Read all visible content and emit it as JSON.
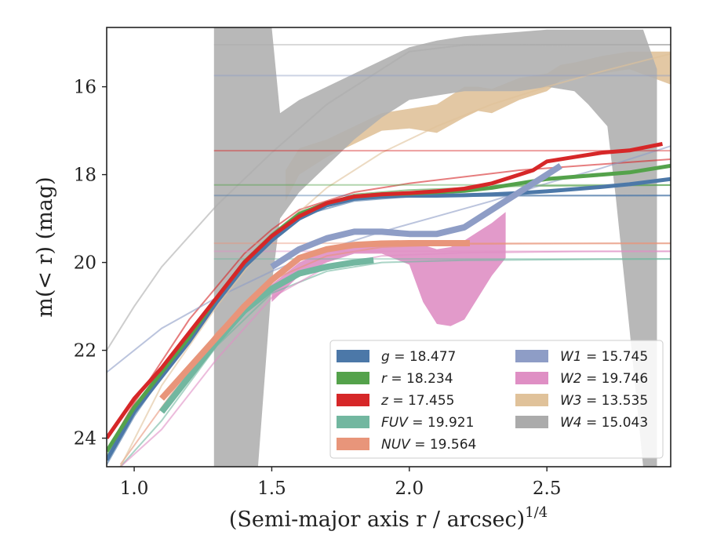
{
  "chart_data": {
    "type": "line",
    "xlabel": "(Semi-major axis r / arcsec)",
    "xlabel_superscript": "1/4",
    "ylabel": "m(< r) (mag)",
    "xlim": [
      0.9,
      2.95
    ],
    "ylim": [
      24.65,
      14.65
    ],
    "y_inverted": true,
    "grid": false,
    "legend_placement": "lower-right",
    "xticks": [
      "1.0",
      "1.5",
      "2.0",
      "2.5"
    ],
    "xtick_values": [
      1.0,
      1.5,
      2.0,
      2.5
    ],
    "yticks": [
      "16",
      "18",
      "20",
      "22",
      "24"
    ],
    "ytick_values": [
      16,
      18,
      20,
      22,
      24
    ],
    "legend_left": [
      {
        "prefix": "g",
        "text": " = 18.477",
        "color": "#4c78a8"
      },
      {
        "prefix": "r",
        "text": " = 18.234",
        "color": "#54a24b"
      },
      {
        "prefix": "z",
        "text": " = 17.455",
        "color": "#d62728"
      },
      {
        "prefix": "FUV",
        "text": " = 19.921",
        "color": "#72b7a0"
      },
      {
        "prefix": "NUV",
        "text": " = 19.564",
        "color": "#e8957a"
      }
    ],
    "legend_right": [
      {
        "prefix": "W1",
        "text": " = 15.745",
        "color": "#8e9dc6"
      },
      {
        "prefix": "W2",
        "text": " = 19.746",
        "color": "#df8fc4"
      },
      {
        "prefix": "W3",
        "text": " = 13.535",
        "color": "#e0c29a"
      },
      {
        "prefix": "W4",
        "text": " = 15.043",
        "color": "#ababab"
      }
    ],
    "series": [
      {
        "name": "g",
        "color": "#4c78a8",
        "asymptote": 18.477,
        "x": [
          0.9,
          1.0,
          1.1,
          1.2,
          1.3,
          1.4,
          1.5,
          1.6,
          1.7,
          1.8,
          1.9,
          2.0,
          2.1,
          2.2,
          2.3,
          2.4,
          2.5,
          2.6,
          2.7,
          2.8,
          2.95
        ],
        "y": [
          24.5,
          23.4,
          22.6,
          21.8,
          20.9,
          20.1,
          19.5,
          19.0,
          18.7,
          18.55,
          18.5,
          18.48,
          18.48,
          18.47,
          18.45,
          18.42,
          18.38,
          18.33,
          18.28,
          18.22,
          18.1
        ]
      },
      {
        "name": "r",
        "color": "#54a24b",
        "asymptote": 18.234,
        "x": [
          0.9,
          1.0,
          1.1,
          1.2,
          1.3,
          1.4,
          1.5,
          1.6,
          1.7,
          1.8,
          1.9,
          2.0,
          2.1,
          2.2,
          2.3,
          2.4,
          2.5,
          2.6,
          2.7,
          2.8,
          2.95
        ],
        "y": [
          24.3,
          23.3,
          22.5,
          21.7,
          20.8,
          20.0,
          19.4,
          18.9,
          18.65,
          18.5,
          18.45,
          18.43,
          18.4,
          18.37,
          18.3,
          18.2,
          18.1,
          18.05,
          18.0,
          17.95,
          17.8
        ]
      },
      {
        "name": "z",
        "color": "#d62728",
        "asymptote": 17.455,
        "x": [
          0.9,
          1.0,
          1.1,
          1.2,
          1.3,
          1.4,
          1.5,
          1.6,
          1.7,
          1.8,
          1.9,
          2.0,
          2.1,
          2.2,
          2.3,
          2.4,
          2.45,
          2.5,
          2.6,
          2.7,
          2.8,
          2.92
        ],
        "y": [
          24.0,
          23.1,
          22.4,
          21.6,
          20.8,
          20.0,
          19.4,
          18.95,
          18.65,
          18.5,
          18.45,
          18.42,
          18.38,
          18.32,
          18.2,
          18.0,
          17.9,
          17.7,
          17.6,
          17.5,
          17.45,
          17.3
        ]
      },
      {
        "name": "FUV",
        "color": "#72b7a0",
        "asymptote": 19.921,
        "x": [
          1.1,
          1.2,
          1.3,
          1.4,
          1.5,
          1.6,
          1.7,
          1.8,
          1.87
        ],
        "y": [
          23.4,
          22.6,
          21.8,
          21.1,
          20.6,
          20.25,
          20.1,
          20.0,
          19.95
        ]
      },
      {
        "name": "NUV",
        "color": "#e8957a",
        "asymptote": 19.564,
        "x": [
          1.1,
          1.2,
          1.3,
          1.4,
          1.5,
          1.6,
          1.7,
          1.8,
          1.9,
          2.0,
          2.1,
          2.22
        ],
        "y": [
          23.1,
          22.4,
          21.7,
          21.0,
          20.4,
          19.9,
          19.7,
          19.6,
          19.57,
          19.56,
          19.56,
          19.56
        ]
      },
      {
        "name": "W1",
        "color": "#8e9dc6",
        "asymptote": 15.745,
        "x": [
          1.5,
          1.6,
          1.7,
          1.8,
          1.9,
          2.0,
          2.1,
          2.2,
          2.3,
          2.4,
          2.5,
          2.55
        ],
        "y": [
          20.1,
          19.7,
          19.45,
          19.3,
          19.3,
          19.35,
          19.35,
          19.2,
          18.8,
          18.4,
          18.0,
          17.8
        ]
      },
      {
        "name": "W2",
        "color": "#df8fc4",
        "asymptote": 19.746,
        "x": [
          1.5,
          1.6,
          1.7,
          1.8,
          1.9,
          2.0,
          2.05,
          2.1,
          2.15,
          2.2,
          2.25,
          2.3,
          2.35
        ],
        "y": [
          20.7,
          20.15,
          19.85,
          19.65,
          19.6,
          19.65,
          19.85,
          20.1,
          20.35,
          20.55,
          20.3,
          19.9,
          19.6
        ]
      },
      {
        "name": "W3",
        "color": "#e0c29a",
        "asymptote": 13.535,
        "x": [
          1.55,
          1.6,
          1.7,
          1.8,
          1.9,
          2.0,
          2.1,
          2.2,
          2.3,
          2.4,
          2.5,
          2.6,
          2.7,
          2.8,
          2.95
        ],
        "y": [
          18.2,
          17.7,
          17.35,
          17.05,
          16.85,
          16.6,
          16.4,
          16.25,
          16.1,
          15.9,
          15.75,
          15.6,
          15.5,
          15.4,
          15.3
        ]
      },
      {
        "name": "W4",
        "color": "#ababab",
        "asymptote": 15.043,
        "x": [
          1.29,
          1.4,
          1.5,
          1.6,
          1.7,
          1.8,
          1.9,
          2.0,
          2.1,
          2.2,
          2.3,
          2.4,
          2.5,
          2.6,
          2.7,
          2.8,
          2.9
        ],
        "y": [
          18.4,
          18.3,
          18.0,
          17.4,
          16.8,
          16.3,
          15.9,
          15.7,
          15.6,
          15.6,
          15.6,
          15.6,
          15.65,
          15.7,
          15.75,
          15.8,
          15.85
        ]
      }
    ],
    "bands": [
      {
        "name": "W3",
        "color": "#e0c29a",
        "x": [
          1.55,
          1.6,
          1.7,
          1.8,
          1.9,
          2.0,
          2.1,
          2.2,
          2.25,
          2.3,
          2.4,
          2.5,
          2.55,
          2.6,
          2.7,
          2.8,
          2.95
        ],
        "y_lo": [
          18.6,
          18.0,
          17.6,
          17.3,
          17.0,
          16.95,
          17.05,
          16.7,
          16.55,
          16.6,
          16.3,
          16.1,
          15.85,
          15.8,
          15.7,
          15.6,
          15.95
        ],
        "y_hi": [
          17.9,
          17.4,
          17.2,
          16.9,
          16.6,
          16.5,
          16.4,
          16.0,
          16.0,
          16.05,
          15.8,
          15.7,
          15.5,
          15.45,
          15.3,
          15.2,
          15.2
        ]
      },
      {
        "name": "W4",
        "color": "#b0b0b0",
        "x": [
          1.29,
          1.3,
          1.38,
          1.45,
          1.5,
          1.53,
          1.6,
          1.7,
          1.8,
          1.9,
          2.0,
          2.1,
          2.2,
          2.3,
          2.4,
          2.5,
          2.6,
          2.65,
          2.72,
          2.75,
          2.8,
          2.85,
          2.9
        ],
        "y_lo": [
          24.65,
          24.65,
          24.65,
          24.65,
          20.5,
          19.0,
          18.4,
          17.8,
          17.2,
          16.7,
          16.3,
          16.2,
          16.1,
          16.1,
          16.1,
          16.0,
          16.1,
          16.4,
          16.9,
          18.5,
          21.5,
          24.65,
          24.65
        ],
        "y_hi": [
          14.65,
          14.65,
          14.65,
          14.65,
          14.65,
          16.6,
          16.3,
          16.0,
          15.7,
          15.4,
          15.1,
          14.95,
          14.85,
          14.8,
          14.75,
          14.7,
          14.7,
          14.7,
          14.7,
          14.7,
          14.7,
          14.7,
          15.6
        ]
      },
      {
        "name": "W2",
        "color": "#df8fc4",
        "x": [
          1.5,
          1.6,
          1.7,
          1.8,
          1.9,
          2.0,
          2.05,
          2.1,
          2.15,
          2.2,
          2.25,
          2.3,
          2.35
        ],
        "y_lo": [
          20.9,
          20.3,
          20.0,
          19.8,
          19.8,
          20.05,
          20.9,
          21.4,
          21.45,
          21.3,
          20.8,
          20.3,
          19.9
        ],
        "y_hi": [
          20.5,
          20.0,
          19.7,
          19.55,
          19.5,
          19.55,
          19.6,
          19.7,
          19.65,
          19.5,
          19.3,
          19.1,
          18.85
        ]
      }
    ],
    "model_curves": [
      {
        "name": "g",
        "color": "#4c78a8",
        "asymptote": 18.477,
        "x": [
          0.9,
          1.0,
          1.2,
          1.4,
          1.5,
          1.6,
          1.8,
          2.0,
          2.4,
          2.95
        ],
        "y": [
          24.6,
          23.5,
          21.7,
          20.0,
          19.4,
          18.95,
          18.6,
          18.5,
          18.48,
          18.477
        ]
      },
      {
        "name": "r",
        "color": "#54a24b",
        "asymptote": 18.234,
        "x": [
          0.9,
          1.0,
          1.2,
          1.4,
          1.5,
          1.6,
          1.8,
          2.0,
          2.4,
          2.95
        ],
        "y": [
          24.4,
          23.3,
          21.6,
          19.95,
          19.35,
          18.85,
          18.45,
          18.35,
          18.26,
          18.24
        ]
      },
      {
        "name": "z",
        "color": "#d62728",
        "asymptote": 17.455,
        "x": [
          0.9,
          1.0,
          1.2,
          1.4,
          1.5,
          1.6,
          1.8,
          2.0,
          2.4,
          2.95
        ],
        "y": [
          24.3,
          23.2,
          21.3,
          19.8,
          19.25,
          18.8,
          18.4,
          18.2,
          17.9,
          17.65
        ]
      },
      {
        "name": "FUV",
        "color": "#72b7a0",
        "asymptote": 19.921,
        "x": [
          0.95,
          1.1,
          1.3,
          1.5,
          1.7,
          1.9,
          2.2,
          2.6,
          2.95
        ],
        "y": [
          24.65,
          23.6,
          21.9,
          20.7,
          20.2,
          20.0,
          19.95,
          19.93,
          19.92
        ]
      },
      {
        "name": "NUV",
        "color": "#e8957a",
        "asymptote": 19.564,
        "x": [
          0.95,
          1.1,
          1.3,
          1.5,
          1.7,
          1.9,
          2.2,
          2.6,
          2.95
        ],
        "y": [
          24.6,
          23.3,
          21.6,
          20.4,
          19.85,
          19.65,
          19.58,
          19.57,
          19.564
        ]
      },
      {
        "name": "W1",
        "color": "#8e9dc6",
        "asymptote": 15.745,
        "x": [
          0.9,
          1.1,
          1.3,
          1.5,
          1.7,
          1.9,
          2.1,
          2.3,
          2.5,
          2.7,
          2.95
        ],
        "y": [
          22.5,
          21.5,
          20.8,
          20.2,
          19.7,
          19.3,
          18.95,
          18.6,
          18.2,
          17.85,
          17.35
        ]
      },
      {
        "name": "W2",
        "color": "#df8fc4",
        "asymptote": 19.746,
        "x": [
          0.95,
          1.1,
          1.3,
          1.5,
          1.7,
          1.9,
          2.2,
          2.6,
          2.95
        ],
        "y": [
          24.65,
          23.8,
          22.2,
          20.8,
          20.1,
          19.85,
          19.78,
          19.75,
          19.746
        ]
      },
      {
        "name": "W3",
        "color": "#e0c29a",
        "asymptote": 13.535,
        "x": [
          0.95,
          1.1,
          1.3,
          1.5,
          1.7,
          1.9,
          2.1,
          2.3,
          2.5,
          2.7,
          2.95
        ],
        "y": [
          24.65,
          22.8,
          21.0,
          19.4,
          18.3,
          17.5,
          16.9,
          16.4,
          16.0,
          15.65,
          15.25
        ]
      },
      {
        "name": "W4",
        "color": "#ababab",
        "asymptote": 15.043,
        "x": [
          0.9,
          1.0,
          1.1,
          1.3,
          1.5,
          1.7,
          1.9,
          2.0,
          2.2,
          2.6,
          2.95
        ],
        "y": [
          22.0,
          21.0,
          20.1,
          18.7,
          17.5,
          16.4,
          15.6,
          15.2,
          15.05,
          15.043,
          15.043
        ]
      }
    ]
  }
}
